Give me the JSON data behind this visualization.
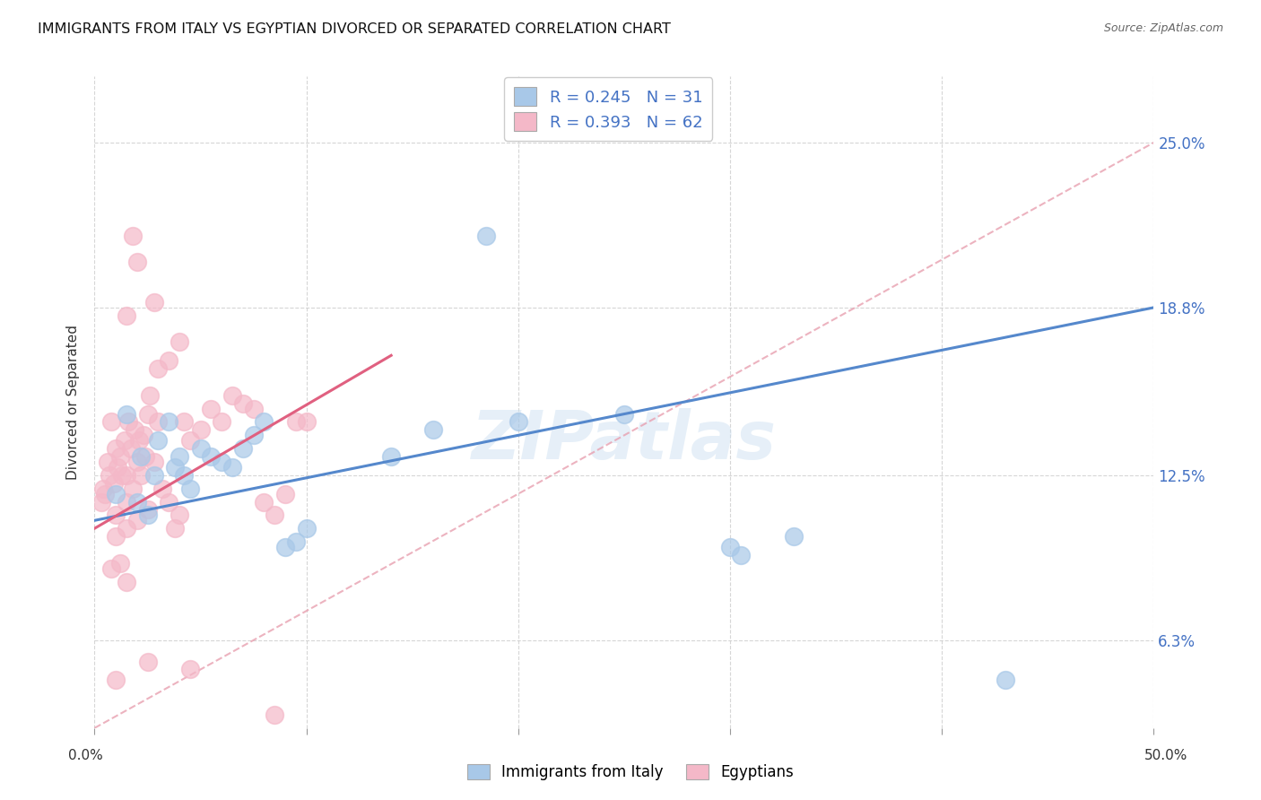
{
  "title": "IMMIGRANTS FROM ITALY VS EGYPTIAN DIVORCED OR SEPARATED CORRELATION CHART",
  "source": "Source: ZipAtlas.com",
  "ylabel": "Divorced or Separated",
  "yticks": [
    "6.3%",
    "12.5%",
    "18.8%",
    "25.0%"
  ],
  "ytick_vals": [
    6.3,
    12.5,
    18.8,
    25.0
  ],
  "xlim": [
    0.0,
    50.0
  ],
  "ylim": [
    3.0,
    27.5
  ],
  "watermark": "ZIPatlas",
  "blue_color": "#a8c8e8",
  "pink_color": "#f4b8c8",
  "blue_scatter": [
    [
      1.0,
      11.8
    ],
    [
      1.5,
      14.8
    ],
    [
      2.0,
      11.5
    ],
    [
      2.2,
      13.2
    ],
    [
      2.5,
      11.0
    ],
    [
      2.8,
      12.5
    ],
    [
      3.0,
      13.8
    ],
    [
      3.5,
      14.5
    ],
    [
      3.8,
      12.8
    ],
    [
      4.0,
      13.2
    ],
    [
      4.2,
      12.5
    ],
    [
      4.5,
      12.0
    ],
    [
      5.0,
      13.5
    ],
    [
      5.5,
      13.2
    ],
    [
      6.0,
      13.0
    ],
    [
      6.5,
      12.8
    ],
    [
      7.0,
      13.5
    ],
    [
      7.5,
      14.0
    ],
    [
      8.0,
      14.5
    ],
    [
      9.0,
      9.8
    ],
    [
      9.5,
      10.0
    ],
    [
      10.0,
      10.5
    ],
    [
      14.0,
      13.2
    ],
    [
      16.0,
      14.2
    ],
    [
      18.5,
      21.5
    ],
    [
      20.0,
      14.5
    ],
    [
      25.0,
      14.8
    ],
    [
      30.0,
      9.8
    ],
    [
      30.5,
      9.5
    ],
    [
      33.0,
      10.2
    ],
    [
      43.0,
      4.8
    ]
  ],
  "pink_scatter": [
    [
      0.3,
      11.5
    ],
    [
      0.4,
      12.0
    ],
    [
      0.5,
      11.8
    ],
    [
      0.6,
      13.0
    ],
    [
      0.7,
      12.5
    ],
    [
      0.8,
      14.5
    ],
    [
      0.9,
      12.2
    ],
    [
      1.0,
      13.5
    ],
    [
      1.0,
      11.0
    ],
    [
      1.1,
      12.8
    ],
    [
      1.2,
      13.2
    ],
    [
      1.3,
      12.5
    ],
    [
      1.4,
      13.8
    ],
    [
      1.5,
      12.5
    ],
    [
      1.5,
      11.5
    ],
    [
      1.6,
      14.5
    ],
    [
      1.7,
      13.5
    ],
    [
      1.8,
      12.0
    ],
    [
      1.9,
      14.2
    ],
    [
      2.0,
      13.0
    ],
    [
      2.1,
      13.8
    ],
    [
      2.2,
      12.5
    ],
    [
      2.3,
      14.0
    ],
    [
      2.4,
      13.2
    ],
    [
      2.5,
      14.8
    ],
    [
      2.6,
      15.5
    ],
    [
      2.8,
      13.0
    ],
    [
      3.0,
      14.5
    ],
    [
      3.2,
      12.0
    ],
    [
      3.5,
      11.5
    ],
    [
      3.8,
      10.5
    ],
    [
      4.0,
      11.0
    ],
    [
      4.2,
      14.5
    ],
    [
      4.5,
      13.8
    ],
    [
      5.0,
      14.2
    ],
    [
      5.5,
      15.0
    ],
    [
      6.0,
      14.5
    ],
    [
      6.5,
      15.5
    ],
    [
      7.0,
      15.2
    ],
    [
      7.5,
      15.0
    ],
    [
      8.0,
      11.5
    ],
    [
      8.5,
      11.0
    ],
    [
      9.0,
      11.8
    ],
    [
      9.5,
      14.5
    ],
    [
      10.0,
      14.5
    ],
    [
      2.0,
      20.5
    ],
    [
      2.8,
      19.0
    ],
    [
      1.5,
      18.5
    ],
    [
      1.8,
      21.5
    ],
    [
      3.0,
      16.5
    ],
    [
      3.5,
      16.8
    ],
    [
      4.0,
      17.5
    ],
    [
      1.0,
      10.2
    ],
    [
      1.5,
      10.5
    ],
    [
      2.0,
      10.8
    ],
    [
      2.5,
      11.2
    ],
    [
      0.8,
      9.0
    ],
    [
      1.2,
      9.2
    ],
    [
      1.5,
      8.5
    ],
    [
      1.0,
      4.8
    ],
    [
      2.5,
      5.5
    ],
    [
      4.5,
      5.2
    ],
    [
      8.5,
      3.5
    ]
  ],
  "blue_line_x": [
    0.0,
    50.0
  ],
  "blue_line_y": [
    10.8,
    18.8
  ],
  "pink_line_x": [
    0.0,
    14.0
  ],
  "pink_line_y": [
    10.5,
    17.0
  ],
  "dashed_line_x": [
    0.0,
    50.0
  ],
  "dashed_line_y": [
    3.0,
    25.0
  ],
  "dashed_color": "#f4b8c8"
}
